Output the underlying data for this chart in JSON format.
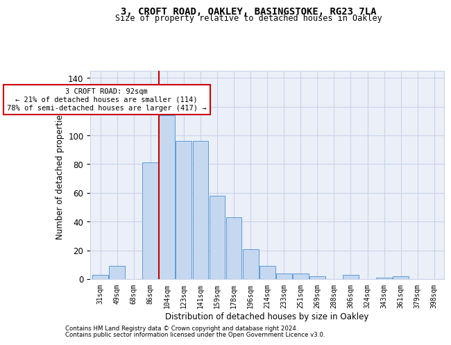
{
  "title1": "3, CROFT ROAD, OAKLEY, BASINGSTOKE, RG23 7LA",
  "title2": "Size of property relative to detached houses in Oakley",
  "xlabel": "Distribution of detached houses by size in Oakley",
  "ylabel": "Number of detached properties",
  "categories": [
    "31sqm",
    "49sqm",
    "68sqm",
    "86sqm",
    "104sqm",
    "123sqm",
    "141sqm",
    "159sqm",
    "178sqm",
    "196sqm",
    "214sqm",
    "233sqm",
    "251sqm",
    "269sqm",
    "288sqm",
    "306sqm",
    "324sqm",
    "343sqm",
    "361sqm",
    "379sqm",
    "398sqm"
  ],
  "values": [
    3,
    9,
    0,
    81,
    114,
    96,
    96,
    58,
    43,
    21,
    9,
    4,
    4,
    2,
    0,
    3,
    0,
    1,
    2,
    0,
    0
  ],
  "bar_color": "#c5d8f0",
  "bar_edge_color": "#5b9bd5",
  "vline_x_index": 3,
  "vline_color": "#cc0000",
  "annotation_text": "3 CROFT ROAD: 92sqm\n← 21% of detached houses are smaller (114)\n78% of semi-detached houses are larger (417) →",
  "annotation_box_color": "white",
  "annotation_box_edge": "#cc0000",
  "ylim": [
    0,
    145
  ],
  "yticks": [
    0,
    20,
    40,
    60,
    80,
    100,
    120,
    140
  ],
  "grid_color": "#c8d4e8",
  "background_color": "#eaeff8",
  "footer1": "Contains HM Land Registry data © Crown copyright and database right 2024.",
  "footer2": "Contains public sector information licensed under the Open Government Licence v3.0."
}
